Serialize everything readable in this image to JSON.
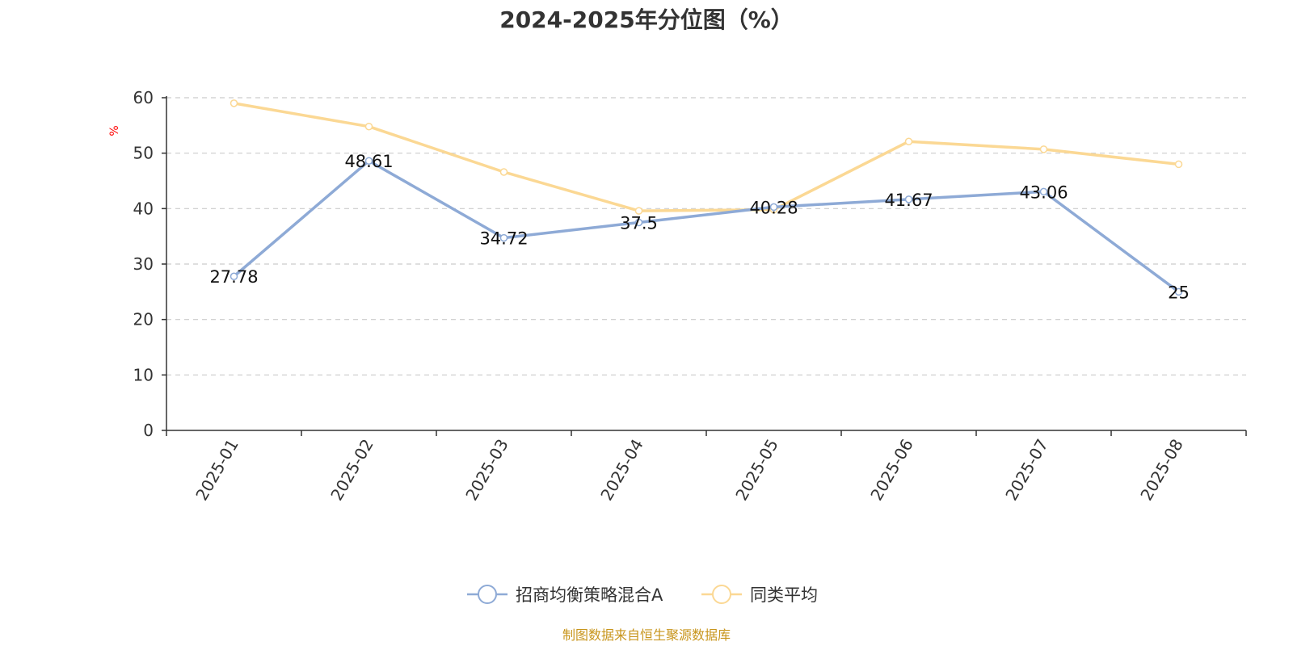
{
  "chart_data": {
    "type": "line",
    "title": "2024-2025年分位图（%）",
    "ylabel": "%",
    "xlabel": "",
    "categories": [
      "2025-01",
      "2025-02",
      "2025-03",
      "2025-04",
      "2025-05",
      "2025-06",
      "2025-07",
      "2025-08"
    ],
    "ylim": [
      0,
      60
    ],
    "yticks": [
      0,
      10,
      20,
      30,
      40,
      50,
      60
    ],
    "grid": true,
    "legend_position": "bottom",
    "series": [
      {
        "name": "招商均衡策略混合A",
        "color": "#8eaad6",
        "values": [
          27.78,
          48.61,
          34.72,
          37.5,
          40.28,
          41.67,
          43.06,
          25
        ],
        "labels": [
          "27.78",
          "48.61",
          "34.72",
          "37.5",
          "40.28",
          "41.67",
          "43.06",
          "25"
        ],
        "show_labels": true
      },
      {
        "name": "同类平均",
        "color": "#fbd894",
        "values": [
          59.0,
          54.8,
          46.6,
          39.6,
          39.8,
          52.1,
          50.7,
          48.0
        ],
        "show_labels": false
      }
    ]
  },
  "footer": {
    "source": "制图数据来自恒生聚源数据库",
    "source_color": "#c8951c"
  },
  "unit_color": "#ff0000"
}
